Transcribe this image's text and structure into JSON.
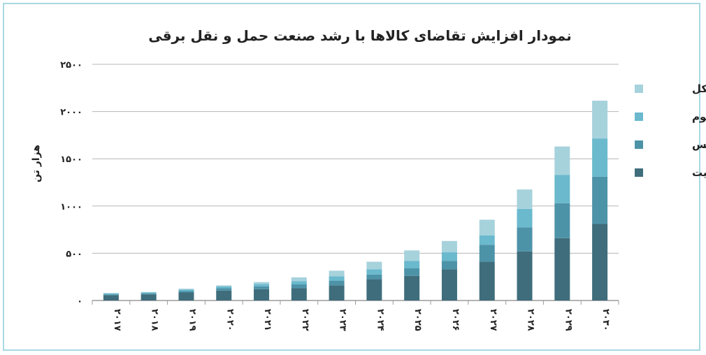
{
  "chart_data": {
    "type": "bar",
    "stacked": true,
    "title": "نمودار افزایش تقاضای کالاها با رشد صنعت حمل و نقل برقی",
    "ylabel": "هزار تن",
    "xlabel": "",
    "ylim": [
      0,
      2500
    ],
    "yticks": [
      "۰",
      "۵۰۰",
      "۱۰۰۰",
      "۱۵۰۰",
      "۲۰۰۰",
      "۲۵۰۰"
    ],
    "grid": true,
    "legend_position": "right",
    "categories": [
      "۲۰۱۷",
      "۲۰۱۸",
      "۲۰۱۹",
      "۲۰۲۰",
      "۲۰۲۱",
      "۲۰۲۲",
      "۲۰۲۳",
      "۲۰۲۴",
      "۲۰۲۵",
      "۲۰۲۶",
      "۲۰۲۷",
      "۲۰۲۸",
      "۲۰۲۹",
      "۲۰۳۰"
    ],
    "series": [
      {
        "name": "گرافیت",
        "color": "#3f6d7c",
        "values": [
          55,
          65,
          85,
          105,
          120,
          130,
          160,
          225,
          260,
          330,
          410,
          520,
          660,
          810
        ]
      },
      {
        "name": "مس",
        "color": "#4d93a8",
        "values": [
          10,
          10,
          15,
          25,
          30,
          40,
          50,
          50,
          80,
          90,
          180,
          255,
          370,
          500
        ]
      },
      {
        "name": "آلومینیوم",
        "color": "#6ab9cd",
        "values": [
          10,
          10,
          15,
          20,
          25,
          35,
          45,
          55,
          80,
          90,
          100,
          195,
          300,
          405
        ]
      },
      {
        "name": "نیکل",
        "color": "#a6d2dc",
        "values": [
          5,
          5,
          10,
          10,
          20,
          40,
          60,
          80,
          110,
          120,
          165,
          205,
          300,
          400
        ]
      }
    ]
  }
}
